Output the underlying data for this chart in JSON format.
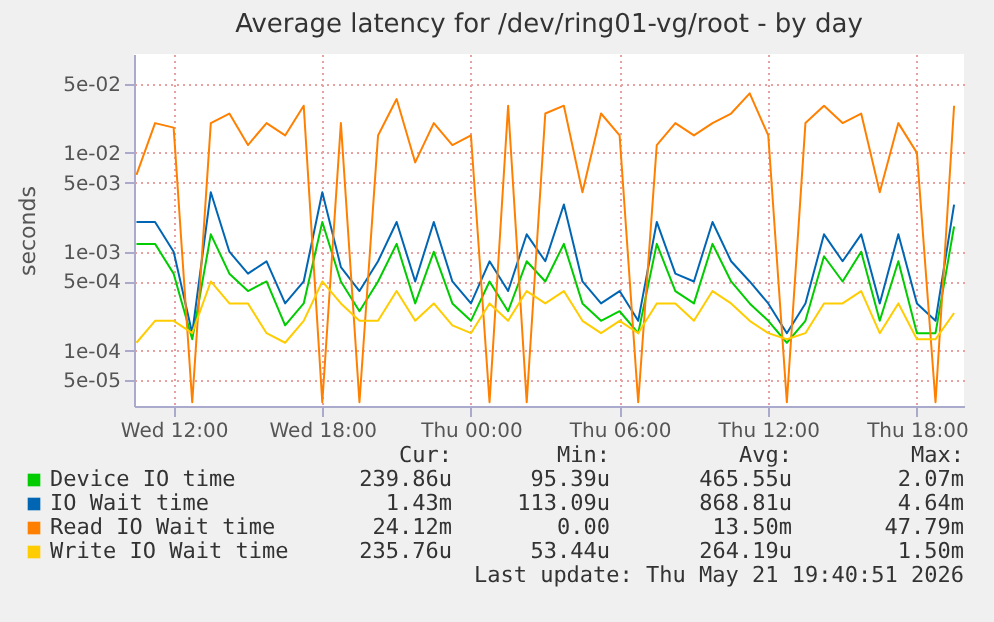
{
  "chart_data": {
    "type": "line",
    "title": "Average latency for /dev/ring01-vg/root - by day",
    "ylabel": "seconds",
    "x": [
      "2026-05-20T10:30",
      "2026-05-20T11:15",
      "2026-05-20T12:00",
      "2026-05-20T12:45",
      "2026-05-20T13:30",
      "2026-05-20T14:15",
      "2026-05-20T15:00",
      "2026-05-20T15:45",
      "2026-05-20T16:30",
      "2026-05-20T17:15",
      "2026-05-20T18:00",
      "2026-05-20T18:45",
      "2026-05-20T19:30",
      "2026-05-20T20:15",
      "2026-05-20T21:00",
      "2026-05-20T21:45",
      "2026-05-20T22:30",
      "2026-05-20T23:15",
      "2026-05-21T00:00",
      "2026-05-21T00:45",
      "2026-05-21T01:30",
      "2026-05-21T02:15",
      "2026-05-21T03:00",
      "2026-05-21T03:45",
      "2026-05-21T04:30",
      "2026-05-21T05:15",
      "2026-05-21T06:00",
      "2026-05-21T06:45",
      "2026-05-21T07:30",
      "2026-05-21T08:15",
      "2026-05-21T09:00",
      "2026-05-21T09:45",
      "2026-05-21T10:30",
      "2026-05-21T11:15",
      "2026-05-21T12:00",
      "2026-05-21T12:45",
      "2026-05-21T13:30",
      "2026-05-21T14:15",
      "2026-05-21T15:00",
      "2026-05-21T15:45",
      "2026-05-21T16:30",
      "2026-05-21T17:15",
      "2026-05-21T18:00",
      "2026-05-21T18:45",
      "2026-05-21T19:30"
    ],
    "series": [
      {
        "name": "Device IO time",
        "color": "#00cc00",
        "values": [
          0.0012,
          0.0012,
          0.0006,
          0.00013,
          0.0015,
          0.0006,
          0.0004,
          0.0005,
          0.00018,
          0.0003,
          0.002,
          0.0005,
          0.00025,
          0.0005,
          0.0012,
          0.0003,
          0.001,
          0.0003,
          0.0002,
          0.0005,
          0.00025,
          0.0008,
          0.0005,
          0.0012,
          0.0003,
          0.0002,
          0.00025,
          0.00015,
          0.0012,
          0.0004,
          0.0003,
          0.0012,
          0.0005,
          0.0003,
          0.0002,
          0.00012,
          0.0002,
          0.0009,
          0.0005,
          0.001,
          0.0002,
          0.0008,
          0.00015,
          0.00015,
          0.0018
        ]
      },
      {
        "name": "IO Wait time",
        "color": "#0066b3",
        "values": [
          0.002,
          0.002,
          0.001,
          0.00015,
          0.004,
          0.001,
          0.0006,
          0.0008,
          0.0003,
          0.0005,
          0.004,
          0.0007,
          0.0004,
          0.0008,
          0.002,
          0.0005,
          0.002,
          0.0005,
          0.0003,
          0.0008,
          0.0004,
          0.0015,
          0.0008,
          0.003,
          0.0005,
          0.0003,
          0.0004,
          0.0002,
          0.002,
          0.0006,
          0.0005,
          0.002,
          0.0008,
          0.0005,
          0.0003,
          0.00015,
          0.0003,
          0.0015,
          0.0008,
          0.0015,
          0.0003,
          0.0015,
          0.0003,
          0.0002,
          0.003
        ]
      },
      {
        "name": "Read IO Wait time",
        "color": "#ff8000",
        "values": [
          0.006,
          0.02,
          0.018,
          3e-05,
          0.02,
          0.025,
          0.012,
          0.02,
          0.015,
          0.03,
          3e-05,
          0.02,
          3e-05,
          0.015,
          0.035,
          0.008,
          0.02,
          0.012,
          0.015,
          3e-05,
          0.03,
          3e-05,
          0.025,
          0.03,
          0.004,
          0.025,
          0.015,
          3e-05,
          0.012,
          0.02,
          0.015,
          0.02,
          0.025,
          0.04,
          0.015,
          3e-05,
          0.02,
          0.03,
          0.02,
          0.025,
          0.004,
          0.02,
          0.01,
          3e-05,
          0.03
        ]
      },
      {
        "name": "Write IO Wait time",
        "color": "#ffcc00",
        "values": [
          0.00012,
          0.0002,
          0.0002,
          0.00015,
          0.0005,
          0.0003,
          0.0003,
          0.00015,
          0.00012,
          0.0002,
          0.0005,
          0.0003,
          0.0002,
          0.0002,
          0.0004,
          0.0002,
          0.0003,
          0.00018,
          0.00015,
          0.0003,
          0.0002,
          0.0004,
          0.0003,
          0.0004,
          0.0002,
          0.00015,
          0.0002,
          0.00015,
          0.0003,
          0.0003,
          0.0002,
          0.0004,
          0.0003,
          0.0002,
          0.00015,
          0.00013,
          0.00015,
          0.0003,
          0.0003,
          0.0004,
          0.00015,
          0.0003,
          0.00013,
          0.00013,
          0.00024
        ]
      }
    ],
    "xlim": [
      "2026-05-20T10:24",
      "2026-05-21T19:54"
    ],
    "xticks": [
      {
        "value": "2026-05-20T12:00",
        "label": "Wed 12:00"
      },
      {
        "value": "2026-05-20T18:00",
        "label": "Wed 18:00"
      },
      {
        "value": "2026-05-21T00:00",
        "label": "Thu 00:00"
      },
      {
        "value": "2026-05-21T06:00",
        "label": "Thu 06:00"
      },
      {
        "value": "2026-05-21T12:00",
        "label": "Thu 12:00"
      },
      {
        "value": "2026-05-21T18:00",
        "label": "Thu 18:00"
      }
    ],
    "ylim": [
      2.75e-05,
      0.1
    ],
    "yticks": [
      {
        "value": 5e-05,
        "label": "5e-05"
      },
      {
        "value": 0.0001,
        "label": "1e-04"
      },
      {
        "value": 0.0005,
        "label": "5e-04"
      },
      {
        "value": 0.001,
        "label": "1e-03"
      },
      {
        "value": 0.005,
        "label": "5e-03"
      },
      {
        "value": 0.01,
        "label": "1e-02"
      },
      {
        "value": 0.05,
        "label": "5e-02"
      }
    ],
    "log": "y",
    "grid": true,
    "legend": "bottom",
    "marker": "none",
    "line_style": "solid",
    "annotations": [
      "Cur:",
      "Min:",
      "Avg:",
      "Max:",
      "239.86u",
      "95.39u",
      "465.55u",
      "2.07m",
      "1.43m",
      "113.09u",
      "868.81u",
      "4.64m",
      "24.12m",
      "0.00",
      "13.50m",
      "47.79m",
      "235.76u",
      "53.44u",
      "264.19u",
      "1.50m",
      "Last update: Thu May 21 19:40:51 2026"
    ]
  }
}
